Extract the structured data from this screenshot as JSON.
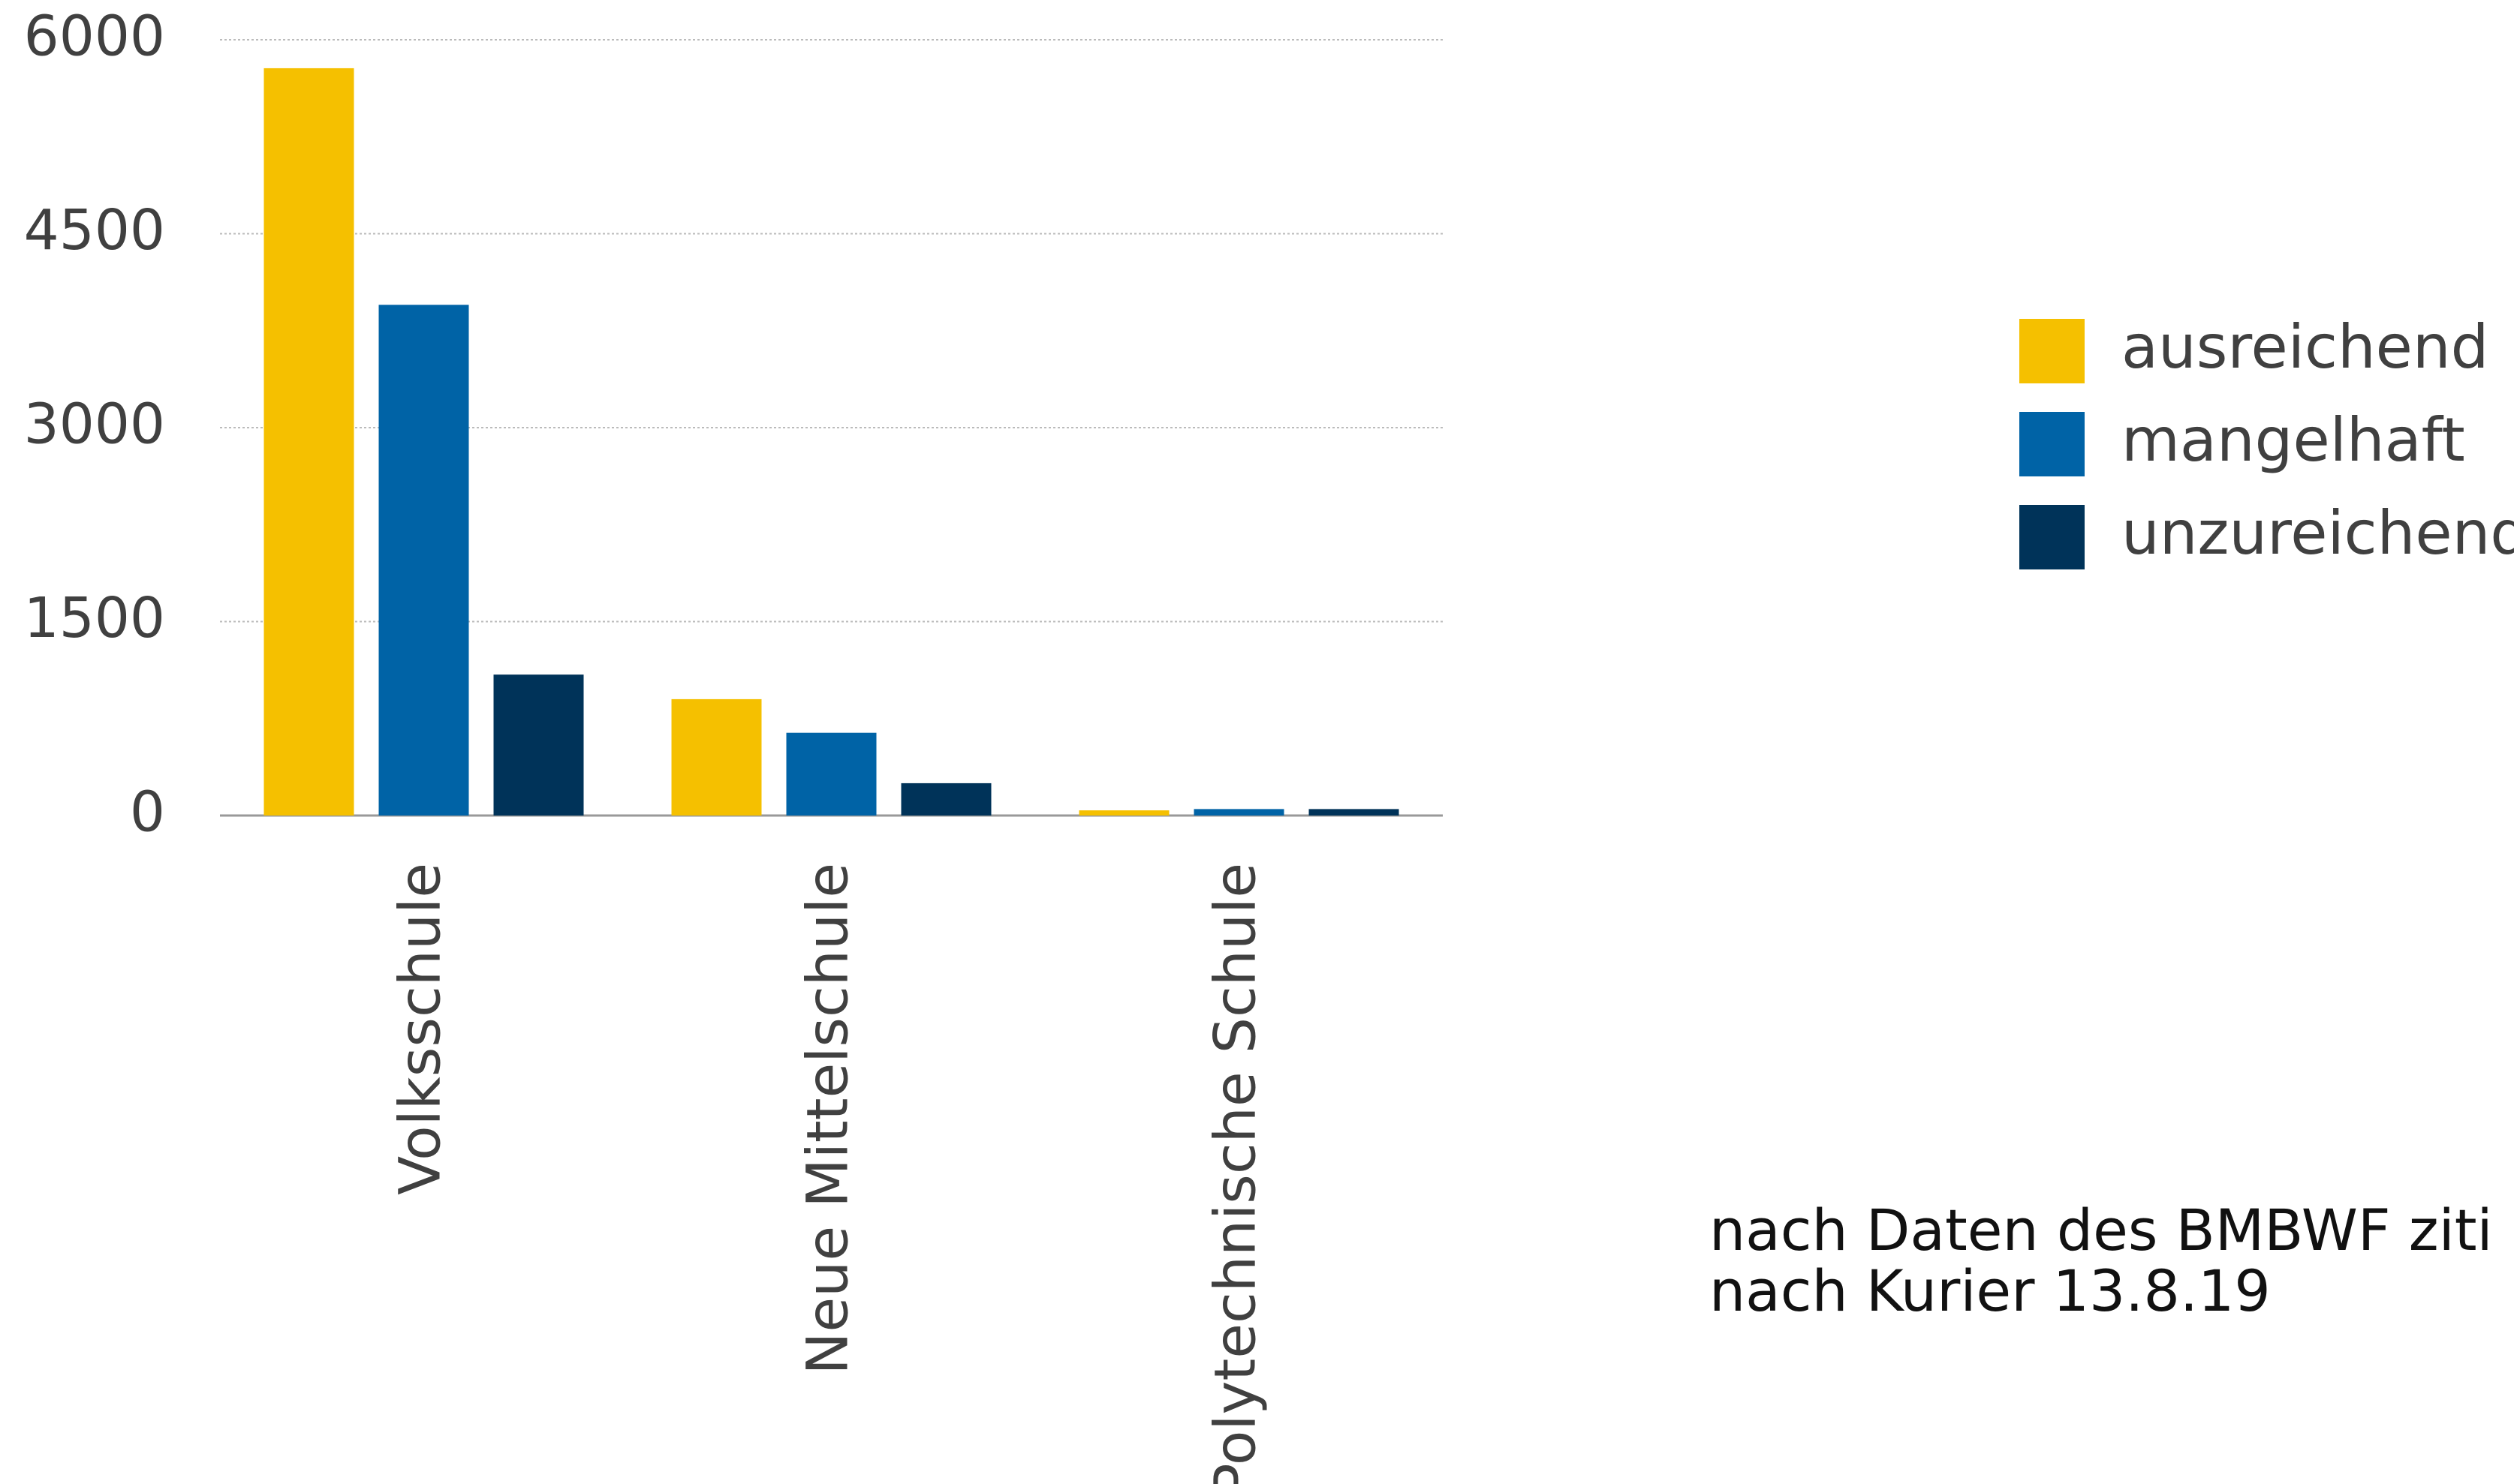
{
  "chart_data": {
    "type": "bar",
    "categories": [
      "Volksschule",
      "Neue Mittelschule",
      "Polytechnische Schule"
    ],
    "series": [
      {
        "name": "ausreichend",
        "color": "#f5c000",
        "values": [
          5780,
          900,
          40
        ]
      },
      {
        "name": "mangelhaft",
        "color": "#0063a6",
        "values": [
          3950,
          640,
          50
        ]
      },
      {
        "name": "unzureichend",
        "color": "#003359",
        "values": [
          1090,
          250,
          50
        ]
      }
    ],
    "ylim": [
      0,
      6000
    ],
    "yticks": [
      0,
      1500,
      3000,
      4500,
      6000
    ],
    "grid": true,
    "legend": "right",
    "footnote": [
      "nach Daten des BMBWF ziti",
      "nach Kurier 13.8.19"
    ]
  }
}
